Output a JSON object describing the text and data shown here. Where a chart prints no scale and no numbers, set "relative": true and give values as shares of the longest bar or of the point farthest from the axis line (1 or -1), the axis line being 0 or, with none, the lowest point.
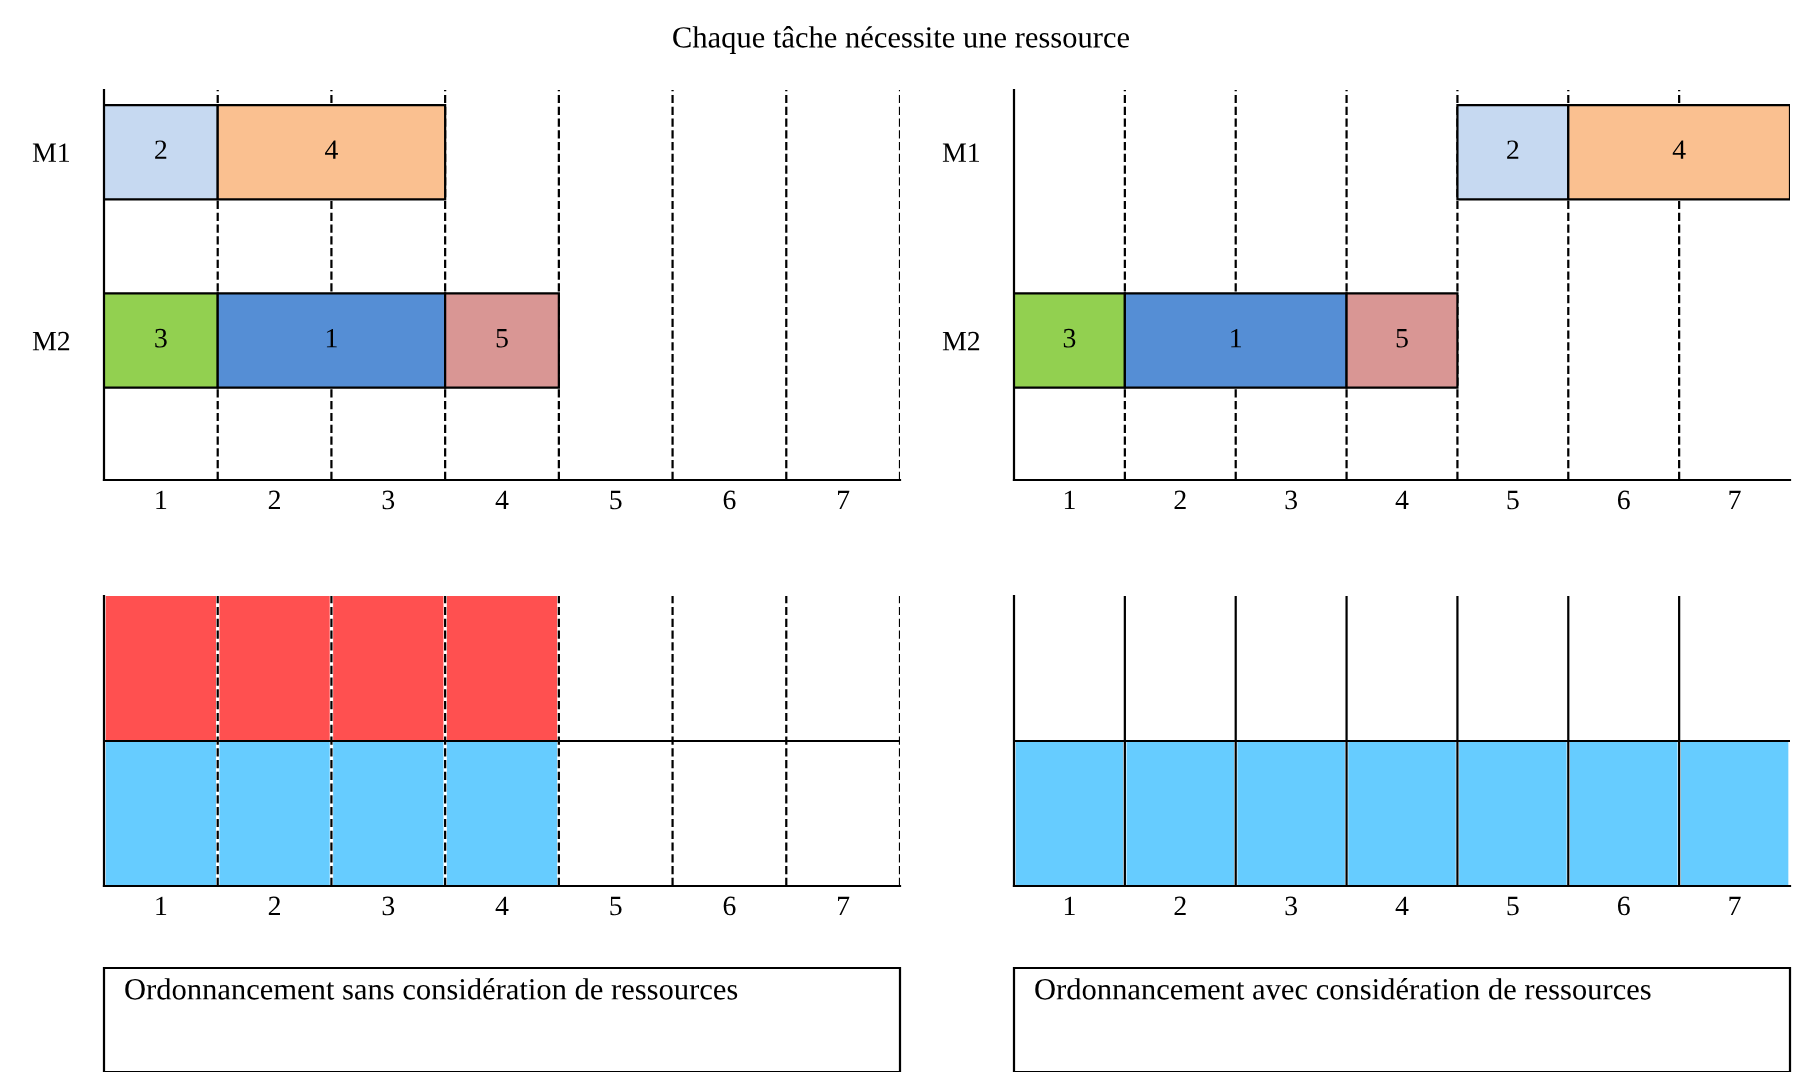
{
  "chart_data": [
    {
      "type": "bar",
      "orientation": "horizontal",
      "title": "Chaque tâche nécessite une ressource",
      "categories": [
        "M1",
        "M2"
      ],
      "xlim": [
        0,
        7
      ],
      "xticks": [
        {
          "value": 0.5,
          "label": "1"
        },
        {
          "value": 1.5,
          "label": "2"
        },
        {
          "value": 2.5,
          "label": "3"
        },
        {
          "value": 3.5,
          "label": "4"
        },
        {
          "value": 4.5,
          "label": "5"
        },
        {
          "value": 5.5,
          "label": "6"
        },
        {
          "value": 6.5,
          "label": "7"
        }
      ],
      "series": [
        {
          "name": "2",
          "color": "#c6d9f1",
          "base": [
            0,
            null
          ],
          "values": [
            1,
            null
          ]
        },
        {
          "name": "4",
          "color": "#fac090",
          "base": [
            1,
            null
          ],
          "values": [
            2,
            null
          ]
        },
        {
          "name": "3",
          "color": "#92d050",
          "base": [
            null,
            0
          ],
          "values": [
            null,
            1
          ]
        },
        {
          "name": "1",
          "color": "#558ed5",
          "base": [
            null,
            1
          ],
          "values": [
            null,
            2
          ]
        },
        {
          "name": "5",
          "color": "#d99694",
          "base": [
            null,
            3
          ],
          "values": [
            null,
            1
          ]
        }
      ],
      "ref_lines": [
        {
          "axis": "x",
          "value": 1,
          "line_style": "dashed"
        },
        {
          "axis": "x",
          "value": 2,
          "line_style": "dashed"
        },
        {
          "axis": "x",
          "value": 3,
          "line_style": "dashed"
        },
        {
          "axis": "x",
          "value": 4,
          "line_style": "dashed"
        },
        {
          "axis": "x",
          "value": 5,
          "line_style": "dashed"
        },
        {
          "axis": "x",
          "value": 6,
          "line_style": "dashed"
        },
        {
          "axis": "x",
          "value": 7,
          "line_style": "dashed"
        }
      ]
    },
    {
      "type": "bar",
      "orientation": "horizontal",
      "categories": [
        "M1",
        "M2"
      ],
      "xlim": [
        0,
        7
      ],
      "xticks": [
        {
          "value": 0.5,
          "label": "1"
        },
        {
          "value": 1.5,
          "label": "2"
        },
        {
          "value": 2.5,
          "label": "3"
        },
        {
          "value": 3.5,
          "label": "4"
        },
        {
          "value": 4.5,
          "label": "5"
        },
        {
          "value": 5.5,
          "label": "6"
        },
        {
          "value": 6.5,
          "label": "7"
        }
      ],
      "series": [
        {
          "name": "2",
          "color": "#c6d9f1",
          "base": [
            4,
            null
          ],
          "values": [
            1,
            null
          ]
        },
        {
          "name": "4",
          "color": "#fac090",
          "base": [
            5,
            null
          ],
          "values": [
            2,
            null
          ]
        },
        {
          "name": "3",
          "color": "#92d050",
          "base": [
            null,
            0
          ],
          "values": [
            null,
            1
          ]
        },
        {
          "name": "1",
          "color": "#558ed5",
          "base": [
            null,
            1
          ],
          "values": [
            null,
            2
          ]
        },
        {
          "name": "5",
          "color": "#d99694",
          "base": [
            null,
            3
          ],
          "values": [
            null,
            1
          ]
        }
      ],
      "ref_lines": [
        {
          "axis": "x",
          "value": 1,
          "line_style": "dashed"
        },
        {
          "axis": "x",
          "value": 2,
          "line_style": "dashed"
        },
        {
          "axis": "x",
          "value": 3,
          "line_style": "dashed"
        },
        {
          "axis": "x",
          "value": 4,
          "line_style": "dashed"
        },
        {
          "axis": "x",
          "value": 5,
          "line_style": "dashed"
        },
        {
          "axis": "x",
          "value": 6,
          "line_style": "dashed"
        }
      ]
    },
    {
      "type": "bar",
      "stacked": true,
      "relative": true,
      "x": [
        0.5,
        1.5,
        2.5,
        3.5,
        4.5,
        5.5,
        6.5
      ],
      "xlim": [
        0,
        7
      ],
      "xticks": [
        {
          "value": 0.5,
          "label": "1"
        },
        {
          "value": 1.5,
          "label": "2"
        },
        {
          "value": 2.5,
          "label": "3"
        },
        {
          "value": 3.5,
          "label": "4"
        },
        {
          "value": 4.5,
          "label": "5"
        },
        {
          "value": 5.5,
          "label": "6"
        },
        {
          "value": 6.5,
          "label": "7"
        }
      ],
      "series": [
        {
          "color": "#66ccff",
          "values": [
            0.5,
            0.5,
            0.5,
            0.5,
            0,
            0,
            0
          ]
        },
        {
          "color": "#ff5050",
          "values": [
            0.5,
            0.5,
            0.5,
            0.5,
            0,
            0,
            0
          ]
        }
      ],
      "ref_lines": [
        {
          "axis": "x",
          "value": 1,
          "line_style": "dashed"
        },
        {
          "axis": "x",
          "value": 2,
          "line_style": "dashed"
        },
        {
          "axis": "x",
          "value": 3,
          "line_style": "dashed"
        },
        {
          "axis": "x",
          "value": 4,
          "line_style": "dashed"
        },
        {
          "axis": "x",
          "value": 5,
          "line_style": "dashed"
        },
        {
          "axis": "x",
          "value": 6,
          "line_style": "dashed"
        },
        {
          "axis": "x",
          "value": 7,
          "line_style": "dashed"
        },
        {
          "axis": "y",
          "value": 0.5,
          "line_style": "solid"
        }
      ],
      "annotations": [
        "Ordonnancement sans considération de ressources"
      ]
    },
    {
      "type": "bar",
      "stacked": true,
      "relative": true,
      "x": [
        0.5,
        1.5,
        2.5,
        3.5,
        4.5,
        5.5,
        6.5
      ],
      "xlim": [
        0,
        7
      ],
      "xticks": [
        {
          "value": 0.5,
          "label": "1"
        },
        {
          "value": 1.5,
          "label": "2"
        },
        {
          "value": 2.5,
          "label": "3"
        },
        {
          "value": 3.5,
          "label": "4"
        },
        {
          "value": 4.5,
          "label": "5"
        },
        {
          "value": 5.5,
          "label": "6"
        },
        {
          "value": 6.5,
          "label": "7"
        }
      ],
      "series": [
        {
          "color": "#66ccff",
          "values": [
            1,
            1,
            1,
            1,
            1,
            1,
            1
          ]
        }
      ],
      "ref_lines": [
        {
          "axis": "x",
          "value": 1,
          "line_style": "solid"
        },
        {
          "axis": "x",
          "value": 2,
          "line_style": "solid"
        },
        {
          "axis": "x",
          "value": 3,
          "line_style": "solid"
        },
        {
          "axis": "x",
          "value": 4,
          "line_style": "solid"
        },
        {
          "axis": "x",
          "value": 5,
          "line_style": "solid"
        },
        {
          "axis": "x",
          "value": 6,
          "line_style": "solid"
        },
        {
          "axis": "y",
          "value": 1,
          "line_style": "solid"
        }
      ],
      "annotations": [
        "Ordonnancement avec considération de ressources"
      ]
    }
  ]
}
